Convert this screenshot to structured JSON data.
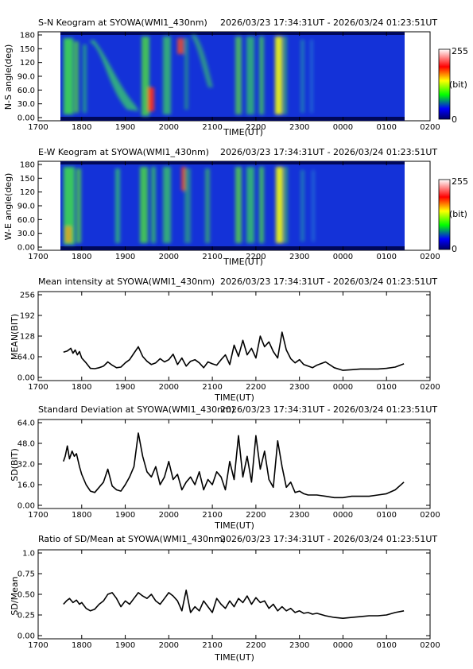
{
  "time_range": "2026/03/23 17:34:31UT - 2026/03/24 01:23:51UT",
  "time_ticks": [
    "1700",
    "1800",
    "1900",
    "2000",
    "2100",
    "2200",
    "2300",
    "0000",
    "0100",
    "0200"
  ],
  "xlabel": "TIME(UT)",
  "keograms": [
    {
      "title": "S-N Keogram at SYOWA(WMI1_430nm)",
      "ylabel": "N-S angle(deg)",
      "yticks": [
        "180",
        "150",
        "120",
        "90.0",
        "60.0",
        "30.0",
        "0.00"
      ],
      "colorbar": {
        "max_label": "255",
        "unit_label": "(bit)",
        "min_label": "0"
      }
    },
    {
      "title": "E-W Keogram at SYOWA(WMI1_430nm)",
      "ylabel": "W-E angle(deg)",
      "yticks": [
        "180",
        "150",
        "120",
        "90.0",
        "60.0",
        "30.0",
        "0.00"
      ],
      "colorbar": {
        "max_label": "255",
        "unit_label": "(bit)",
        "min_label": "0"
      }
    }
  ],
  "chart_data": [
    {
      "type": "line",
      "title": "Mean intensity at SYOWA(WMI1_430nm)",
      "xlabel": "TIME(UT)",
      "ylabel": "MEAN(BIT)",
      "xlim": [
        17.0,
        26.0
      ],
      "ylim": [
        0,
        256
      ],
      "yticks": [
        "256",
        "192",
        "128",
        "64.0",
        "0.00"
      ],
      "ytick_values": [
        256,
        192,
        128,
        64,
        0
      ],
      "x": [
        17.58,
        17.67,
        17.75,
        17.8,
        17.85,
        17.9,
        17.95,
        18.0,
        18.1,
        18.2,
        18.3,
        18.4,
        18.5,
        18.6,
        18.7,
        18.8,
        18.9,
        19.0,
        19.1,
        19.2,
        19.3,
        19.4,
        19.5,
        19.6,
        19.7,
        19.8,
        19.9,
        20.0,
        20.1,
        20.2,
        20.3,
        20.4,
        20.5,
        20.6,
        20.7,
        20.8,
        20.9,
        21.0,
        21.1,
        21.2,
        21.3,
        21.4,
        21.5,
        21.6,
        21.7,
        21.8,
        21.9,
        22.0,
        22.1,
        22.2,
        22.3,
        22.4,
        22.5,
        22.6,
        22.7,
        22.8,
        22.9,
        23.0,
        23.1,
        23.2,
        23.3,
        23.4,
        23.6,
        23.8,
        24.0,
        24.2,
        24.4,
        24.6,
        24.8,
        25.0,
        25.2,
        25.4
      ],
      "values": [
        78,
        82,
        90,
        75,
        85,
        70,
        80,
        60,
        45,
        28,
        27,
        30,
        35,
        48,
        38,
        30,
        32,
        45,
        55,
        75,
        95,
        65,
        50,
        40,
        45,
        58,
        48,
        55,
        72,
        40,
        60,
        35,
        50,
        55,
        45,
        30,
        48,
        42,
        38,
        55,
        70,
        40,
        100,
        65,
        115,
        70,
        90,
        60,
        128,
        95,
        110,
        80,
        60,
        140,
        85,
        58,
        45,
        55,
        40,
        35,
        30,
        38,
        48,
        30,
        22,
        24,
        26,
        26,
        26,
        28,
        32,
        42
      ],
      "grid": false
    },
    {
      "type": "line",
      "title": "Standard Deviation at SYOWA(WMI1_430nm)",
      "xlabel": "TIME(UT)",
      "ylabel": "SD(BIT)",
      "xlim": [
        17.0,
        26.0
      ],
      "ylim": [
        0,
        64
      ],
      "yticks": [
        "64.0",
        "48.0",
        "32.0",
        "16.0",
        "0.00"
      ],
      "ytick_values": [
        64,
        48,
        32,
        16,
        0
      ],
      "x": [
        17.58,
        17.62,
        17.67,
        17.72,
        17.78,
        17.83,
        17.88,
        17.95,
        18.0,
        18.1,
        18.2,
        18.3,
        18.4,
        18.5,
        18.6,
        18.7,
        18.8,
        18.9,
        19.0,
        19.1,
        19.2,
        19.3,
        19.4,
        19.5,
        19.6,
        19.7,
        19.8,
        19.9,
        20.0,
        20.1,
        20.2,
        20.3,
        20.4,
        20.5,
        20.6,
        20.7,
        20.8,
        20.9,
        21.0,
        21.1,
        21.2,
        21.3,
        21.4,
        21.5,
        21.6,
        21.7,
        21.8,
        21.9,
        22.0,
        22.1,
        22.2,
        22.3,
        22.4,
        22.5,
        22.6,
        22.7,
        22.8,
        22.9,
        23.0,
        23.1,
        23.2,
        23.3,
        23.4,
        23.6,
        23.8,
        24.0,
        24.2,
        24.4,
        24.6,
        24.8,
        25.0,
        25.2,
        25.4
      ],
      "values": [
        34,
        38,
        46,
        36,
        42,
        38,
        40,
        30,
        24,
        16,
        11,
        10,
        14,
        18,
        28,
        15,
        12,
        11,
        16,
        22,
        30,
        56,
        38,
        26,
        22,
        30,
        16,
        22,
        34,
        20,
        24,
        12,
        18,
        22,
        16,
        26,
        12,
        20,
        16,
        26,
        22,
        12,
        34,
        20,
        54,
        22,
        38,
        18,
        54,
        28,
        42,
        20,
        14,
        50,
        30,
        14,
        18,
        10,
        11,
        9,
        8,
        8,
        8,
        7,
        6,
        6,
        7,
        7,
        7,
        8,
        9,
        12,
        18
      ],
      "grid": false
    },
    {
      "type": "line",
      "title": "Ratio of SD/Mean at SYOWA(WMI1_430nm)",
      "xlabel": "TIME(UT)",
      "ylabel": "SD/Mean",
      "xlim": [
        17.0,
        26.0
      ],
      "ylim": [
        0,
        1.0
      ],
      "yticks": [
        "1.0",
        "0.75",
        "0.50",
        "0.25",
        "0.00"
      ],
      "ytick_values": [
        1.0,
        0.75,
        0.5,
        0.25,
        0
      ],
      "x": [
        17.58,
        17.65,
        17.72,
        17.8,
        17.88,
        17.95,
        18.0,
        18.1,
        18.2,
        18.3,
        18.4,
        18.5,
        18.6,
        18.7,
        18.8,
        18.9,
        19.0,
        19.1,
        19.2,
        19.3,
        19.4,
        19.5,
        19.6,
        19.7,
        19.8,
        19.9,
        20.0,
        20.1,
        20.2,
        20.3,
        20.4,
        20.5,
        20.6,
        20.7,
        20.8,
        20.9,
        21.0,
        21.1,
        21.2,
        21.3,
        21.4,
        21.5,
        21.6,
        21.7,
        21.8,
        21.9,
        22.0,
        22.1,
        22.2,
        22.3,
        22.4,
        22.5,
        22.6,
        22.7,
        22.8,
        22.9,
        23.0,
        23.1,
        23.2,
        23.3,
        23.4,
        23.6,
        23.8,
        24.0,
        24.2,
        24.4,
        24.6,
        24.8,
        25.0,
        25.2,
        25.4
      ],
      "values": [
        0.38,
        0.42,
        0.45,
        0.4,
        0.43,
        0.38,
        0.4,
        0.33,
        0.3,
        0.32,
        0.38,
        0.42,
        0.5,
        0.52,
        0.45,
        0.35,
        0.42,
        0.38,
        0.45,
        0.52,
        0.48,
        0.45,
        0.5,
        0.42,
        0.38,
        0.45,
        0.52,
        0.48,
        0.42,
        0.3,
        0.55,
        0.28,
        0.35,
        0.3,
        0.42,
        0.35,
        0.28,
        0.45,
        0.38,
        0.33,
        0.42,
        0.35,
        0.45,
        0.4,
        0.48,
        0.38,
        0.46,
        0.4,
        0.42,
        0.33,
        0.38,
        0.3,
        0.35,
        0.3,
        0.33,
        0.28,
        0.3,
        0.27,
        0.28,
        0.26,
        0.27,
        0.24,
        0.22,
        0.21,
        0.22,
        0.23,
        0.24,
        0.24,
        0.25,
        0.28,
        0.3
      ],
      "grid": false
    }
  ]
}
